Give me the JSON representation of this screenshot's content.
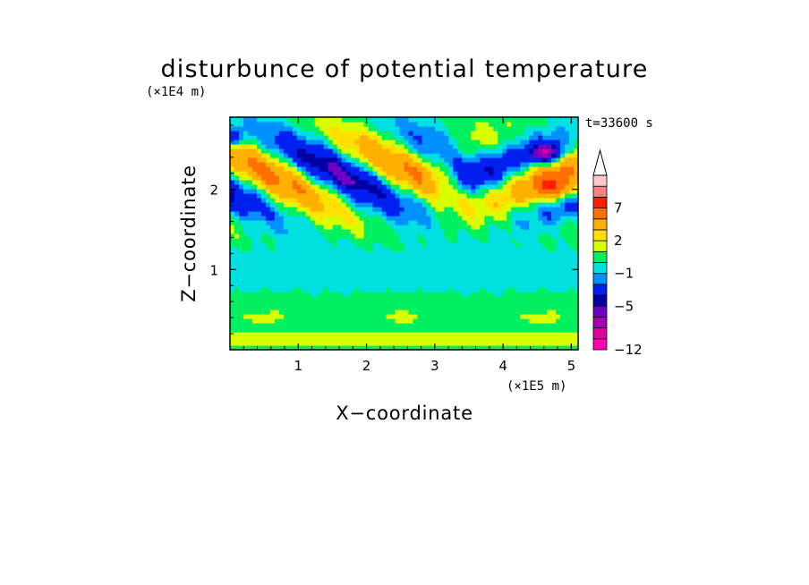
{
  "chart_data": {
    "type": "heatmap",
    "title": "disturbunce of potential temperature",
    "time_label": "t=33600 s",
    "xlabel": "X−coordinate",
    "ylabel": "Z−coordinate",
    "x_scale_label": "(×1E5 m)",
    "y_scale_label": "(×1E4 m)",
    "xlim": [
      0,
      5.1
    ],
    "ylim": [
      0,
      2.9
    ],
    "x_ticks": [
      1,
      2,
      3,
      4,
      5
    ],
    "y_ticks": [
      1,
      2
    ],
    "x_tick_labels": [
      "1",
      "2",
      "3",
      "4",
      "5"
    ],
    "y_tick_labels": [
      "1",
      "2"
    ],
    "colorbar": {
      "levels": [
        -12,
        -10,
        -8,
        -7,
        -5,
        -4,
        -2,
        -1,
        0,
        1,
        2,
        3,
        5,
        7,
        8,
        10
      ],
      "colors": [
        "#ff00b4",
        "#e000a0",
        "#a000b0",
        "#7000c8",
        "#0000a0",
        "#0020f0",
        "#0090ff",
        "#00e0e0",
        "#00f060",
        "#d8ff00",
        "#ffe000",
        "#ffb000",
        "#ff7000",
        "#ff2000",
        "#ff8080",
        "#ffc8c8"
      ],
      "tick_labels": [
        "−12",
        "−5",
        "−1",
        "2",
        "7"
      ],
      "tick_values": [
        -12,
        -5,
        -1,
        2,
        7
      ],
      "extend": "max"
    },
    "field_features": [
      {
        "x": 1.8,
        "z": 2.62,
        "value": -6
      },
      {
        "x": 1.4,
        "z": 2.1,
        "value": -5
      },
      {
        "x": 2.55,
        "z": 1.68,
        "value": -4
      },
      {
        "x": 0.9,
        "z": 2.7,
        "value": 4
      },
      {
        "x": 4.6,
        "z": 2.4,
        "value": -9
      },
      {
        "x": 4.8,
        "z": 2.0,
        "value": 5
      },
      {
        "x": 0.2,
        "z": 2.65,
        "value": -5
      },
      {
        "x": 2.3,
        "z": 0.4,
        "value": 1
      },
      {
        "x": 2.5,
        "z": 1.05,
        "value": 0
      }
    ]
  }
}
